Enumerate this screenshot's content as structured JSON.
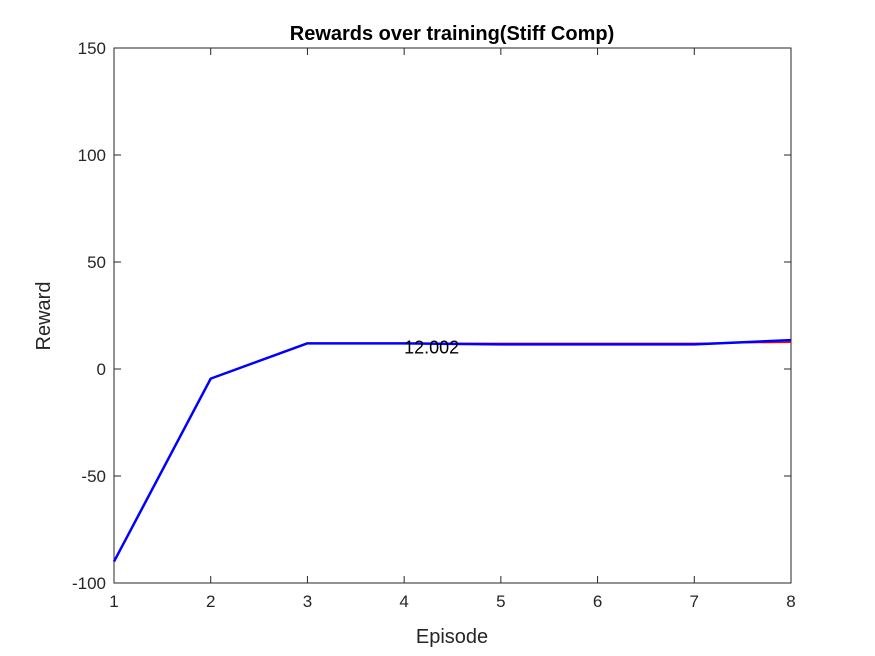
{
  "chart_data": {
    "type": "line",
    "title": "Rewards over training(Stiff Comp)",
    "xlabel": "Episode",
    "ylabel": "Reward",
    "xlim": [
      1,
      8
    ],
    "ylim": [
      -100,
      150
    ],
    "xticks": [
      1,
      2,
      3,
      4,
      5,
      6,
      7,
      8
    ],
    "yticks": [
      -100,
      -50,
      0,
      50,
      100,
      150
    ],
    "grid": false,
    "series": [
      {
        "color": "#ff0000",
        "x": [
          1,
          2,
          3,
          4,
          5,
          6,
          7,
          8
        ],
        "y": [
          -90,
          -4.5,
          12,
          12,
          12,
          12,
          12,
          12.5
        ]
      },
      {
        "color": "#0000ff",
        "x": [
          1,
          2,
          3,
          4,
          5,
          6,
          7,
          8
        ],
        "y": [
          -90,
          -4.5,
          12,
          12,
          11.5,
          11.5,
          11.5,
          13.5
        ]
      }
    ],
    "annotations": [
      {
        "text": "12.002",
        "x": 4,
        "y": 12
      }
    ]
  }
}
